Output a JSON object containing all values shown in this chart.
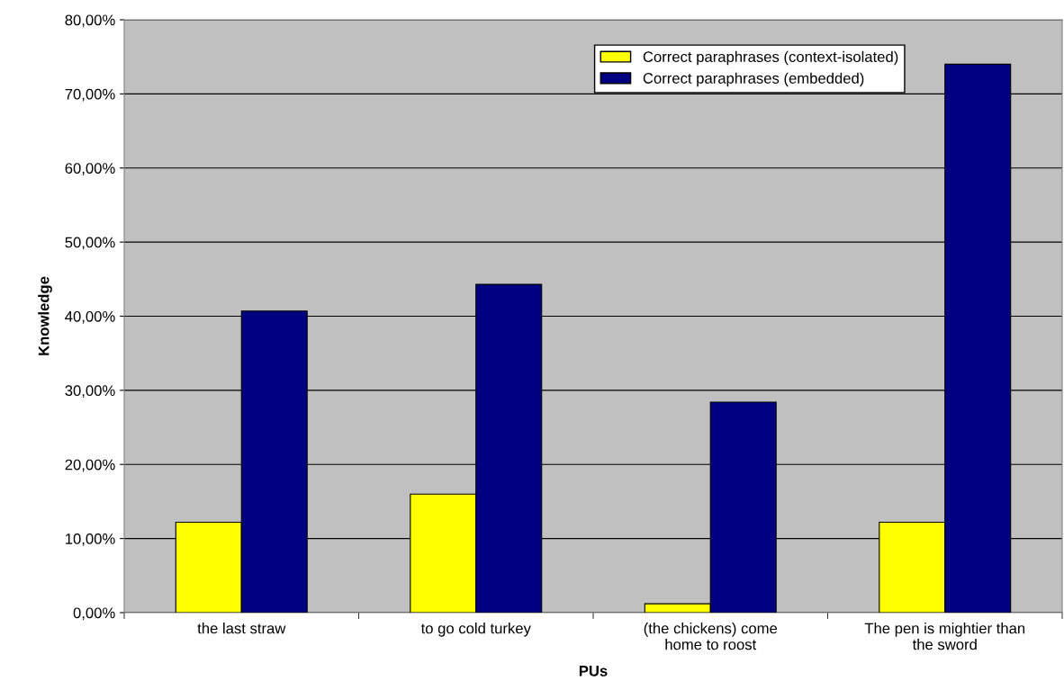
{
  "chart_data": {
    "type": "bar",
    "xlabel": "PUs",
    "ylabel": "Knowledge",
    "categories": [
      "the last straw",
      "to go cold turkey",
      "(the chickens) come\nhome to roost",
      "The pen is mightier than\nthe sword"
    ],
    "series": [
      {
        "name": "Correct paraphrases (context-isolated)",
        "color": "#ffff00",
        "values": [
          12.2,
          16.0,
          1.2,
          12.2
        ]
      },
      {
        "name": "Correct paraphrases (embedded)",
        "color": "#000080",
        "values": [
          40.7,
          44.3,
          28.4,
          74.0
        ]
      }
    ],
    "ylim": [
      0,
      80
    ],
    "yticks": [
      {
        "value": 0,
        "label": "0,00%"
      },
      {
        "value": 10,
        "label": "10,00%"
      },
      {
        "value": 20,
        "label": "20,00%"
      },
      {
        "value": 30,
        "label": "30,00%"
      },
      {
        "value": 40,
        "label": "40,00%"
      },
      {
        "value": 50,
        "label": "50,00%"
      },
      {
        "value": 60,
        "label": "60,00%"
      },
      {
        "value": 70,
        "label": "70,00%"
      },
      {
        "value": 80,
        "label": "80,00%"
      }
    ],
    "grid": "y",
    "legend": "top right"
  }
}
